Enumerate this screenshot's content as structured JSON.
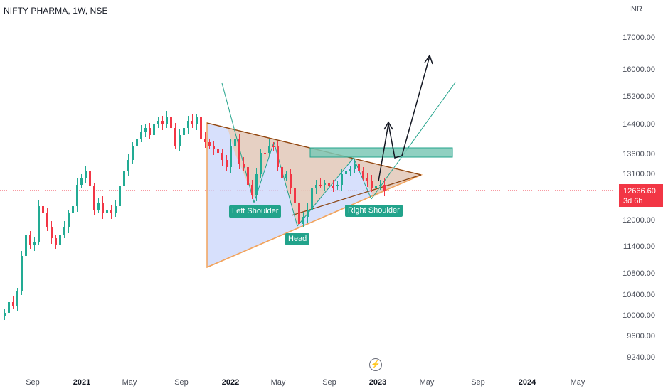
{
  "header": {
    "title": "NIFTY PHARMA, 1W, NSE",
    "currency": "INR"
  },
  "chart_data": {
    "type": "candlestick",
    "y_ticks": [
      "17000.00",
      "16000.00",
      "15200.00",
      "14400.00",
      "13600.00",
      "13100.00",
      "12000.00",
      "11400.00",
      "10800.00",
      "10400.00",
      "10000.00",
      "9600.00",
      "9240.00"
    ],
    "x_ticks": [
      {
        "label": "Sep",
        "bold": false
      },
      {
        "label": "2021",
        "bold": true
      },
      {
        "label": "May",
        "bold": false
      },
      {
        "label": "Sep",
        "bold": false
      },
      {
        "label": "2022",
        "bold": true
      },
      {
        "label": "May",
        "bold": false
      },
      {
        "label": "Sep",
        "bold": false
      },
      {
        "label": "2023",
        "bold": true
      },
      {
        "label": "May",
        "bold": false
      },
      {
        "label": "Sep",
        "bold": false
      },
      {
        "label": "2024",
        "bold": true
      },
      {
        "label": "May",
        "bold": false
      }
    ],
    "last_price": "12666.60",
    "countdown": "3d 6h",
    "annotations": {
      "left_shoulder": "Left Shoulder",
      "head": "Head",
      "right_shoulder": "Right Shoulder"
    },
    "colors": {
      "up": "#22ab94",
      "down": "#f23645",
      "triangle_fill": "#c9d6fb",
      "pattern_fill": "#f0d2b4",
      "zone": "#7dc8b6"
    }
  },
  "footer": {
    "icon": "lightning-icon"
  }
}
